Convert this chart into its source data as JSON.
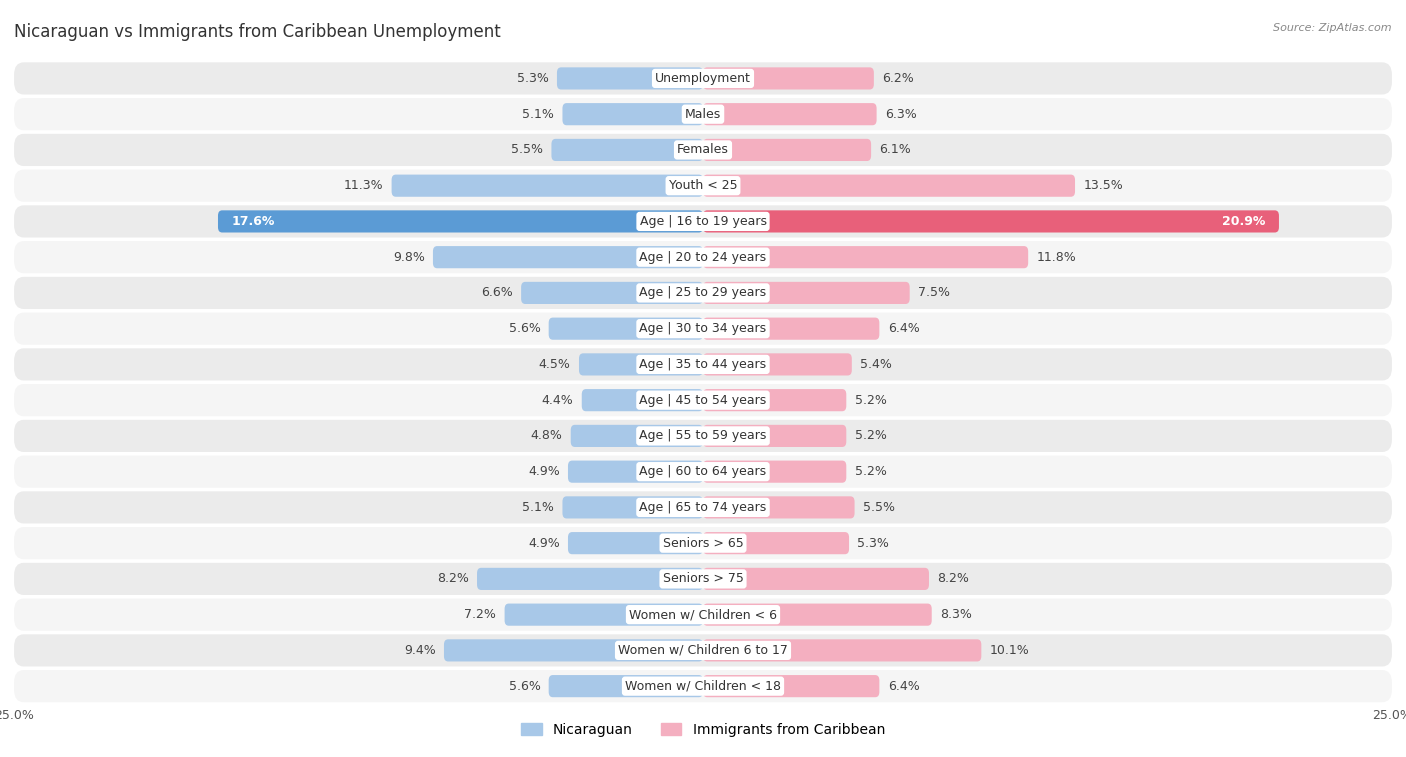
{
  "title": "Nicaraguan vs Immigrants from Caribbean Unemployment",
  "source": "Source: ZipAtlas.com",
  "categories": [
    "Unemployment",
    "Males",
    "Females",
    "Youth < 25",
    "Age | 16 to 19 years",
    "Age | 20 to 24 years",
    "Age | 25 to 29 years",
    "Age | 30 to 34 years",
    "Age | 35 to 44 years",
    "Age | 45 to 54 years",
    "Age | 55 to 59 years",
    "Age | 60 to 64 years",
    "Age | 65 to 74 years",
    "Seniors > 65",
    "Seniors > 75",
    "Women w/ Children < 6",
    "Women w/ Children 6 to 17",
    "Women w/ Children < 18"
  ],
  "nicaraguan": [
    5.3,
    5.1,
    5.5,
    11.3,
    17.6,
    9.8,
    6.6,
    5.6,
    4.5,
    4.4,
    4.8,
    4.9,
    5.1,
    4.9,
    8.2,
    7.2,
    9.4,
    5.6
  ],
  "caribbean": [
    6.2,
    6.3,
    6.1,
    13.5,
    20.9,
    11.8,
    7.5,
    6.4,
    5.4,
    5.2,
    5.2,
    5.2,
    5.5,
    5.3,
    8.2,
    8.3,
    10.1,
    6.4
  ],
  "nicaraguan_color": "#a8c8e8",
  "caribbean_color": "#f4afc0",
  "highlight_nicaraguan_color": "#5b9bd5",
  "highlight_caribbean_color": "#e8607a",
  "row_bg_odd": "#ebebeb",
  "row_bg_even": "#f5f5f5",
  "xlim": 25.0,
  "bar_height": 0.62,
  "label_fontsize": 9.0,
  "category_fontsize": 9.0,
  "title_fontsize": 12,
  "legend_fontsize": 10
}
